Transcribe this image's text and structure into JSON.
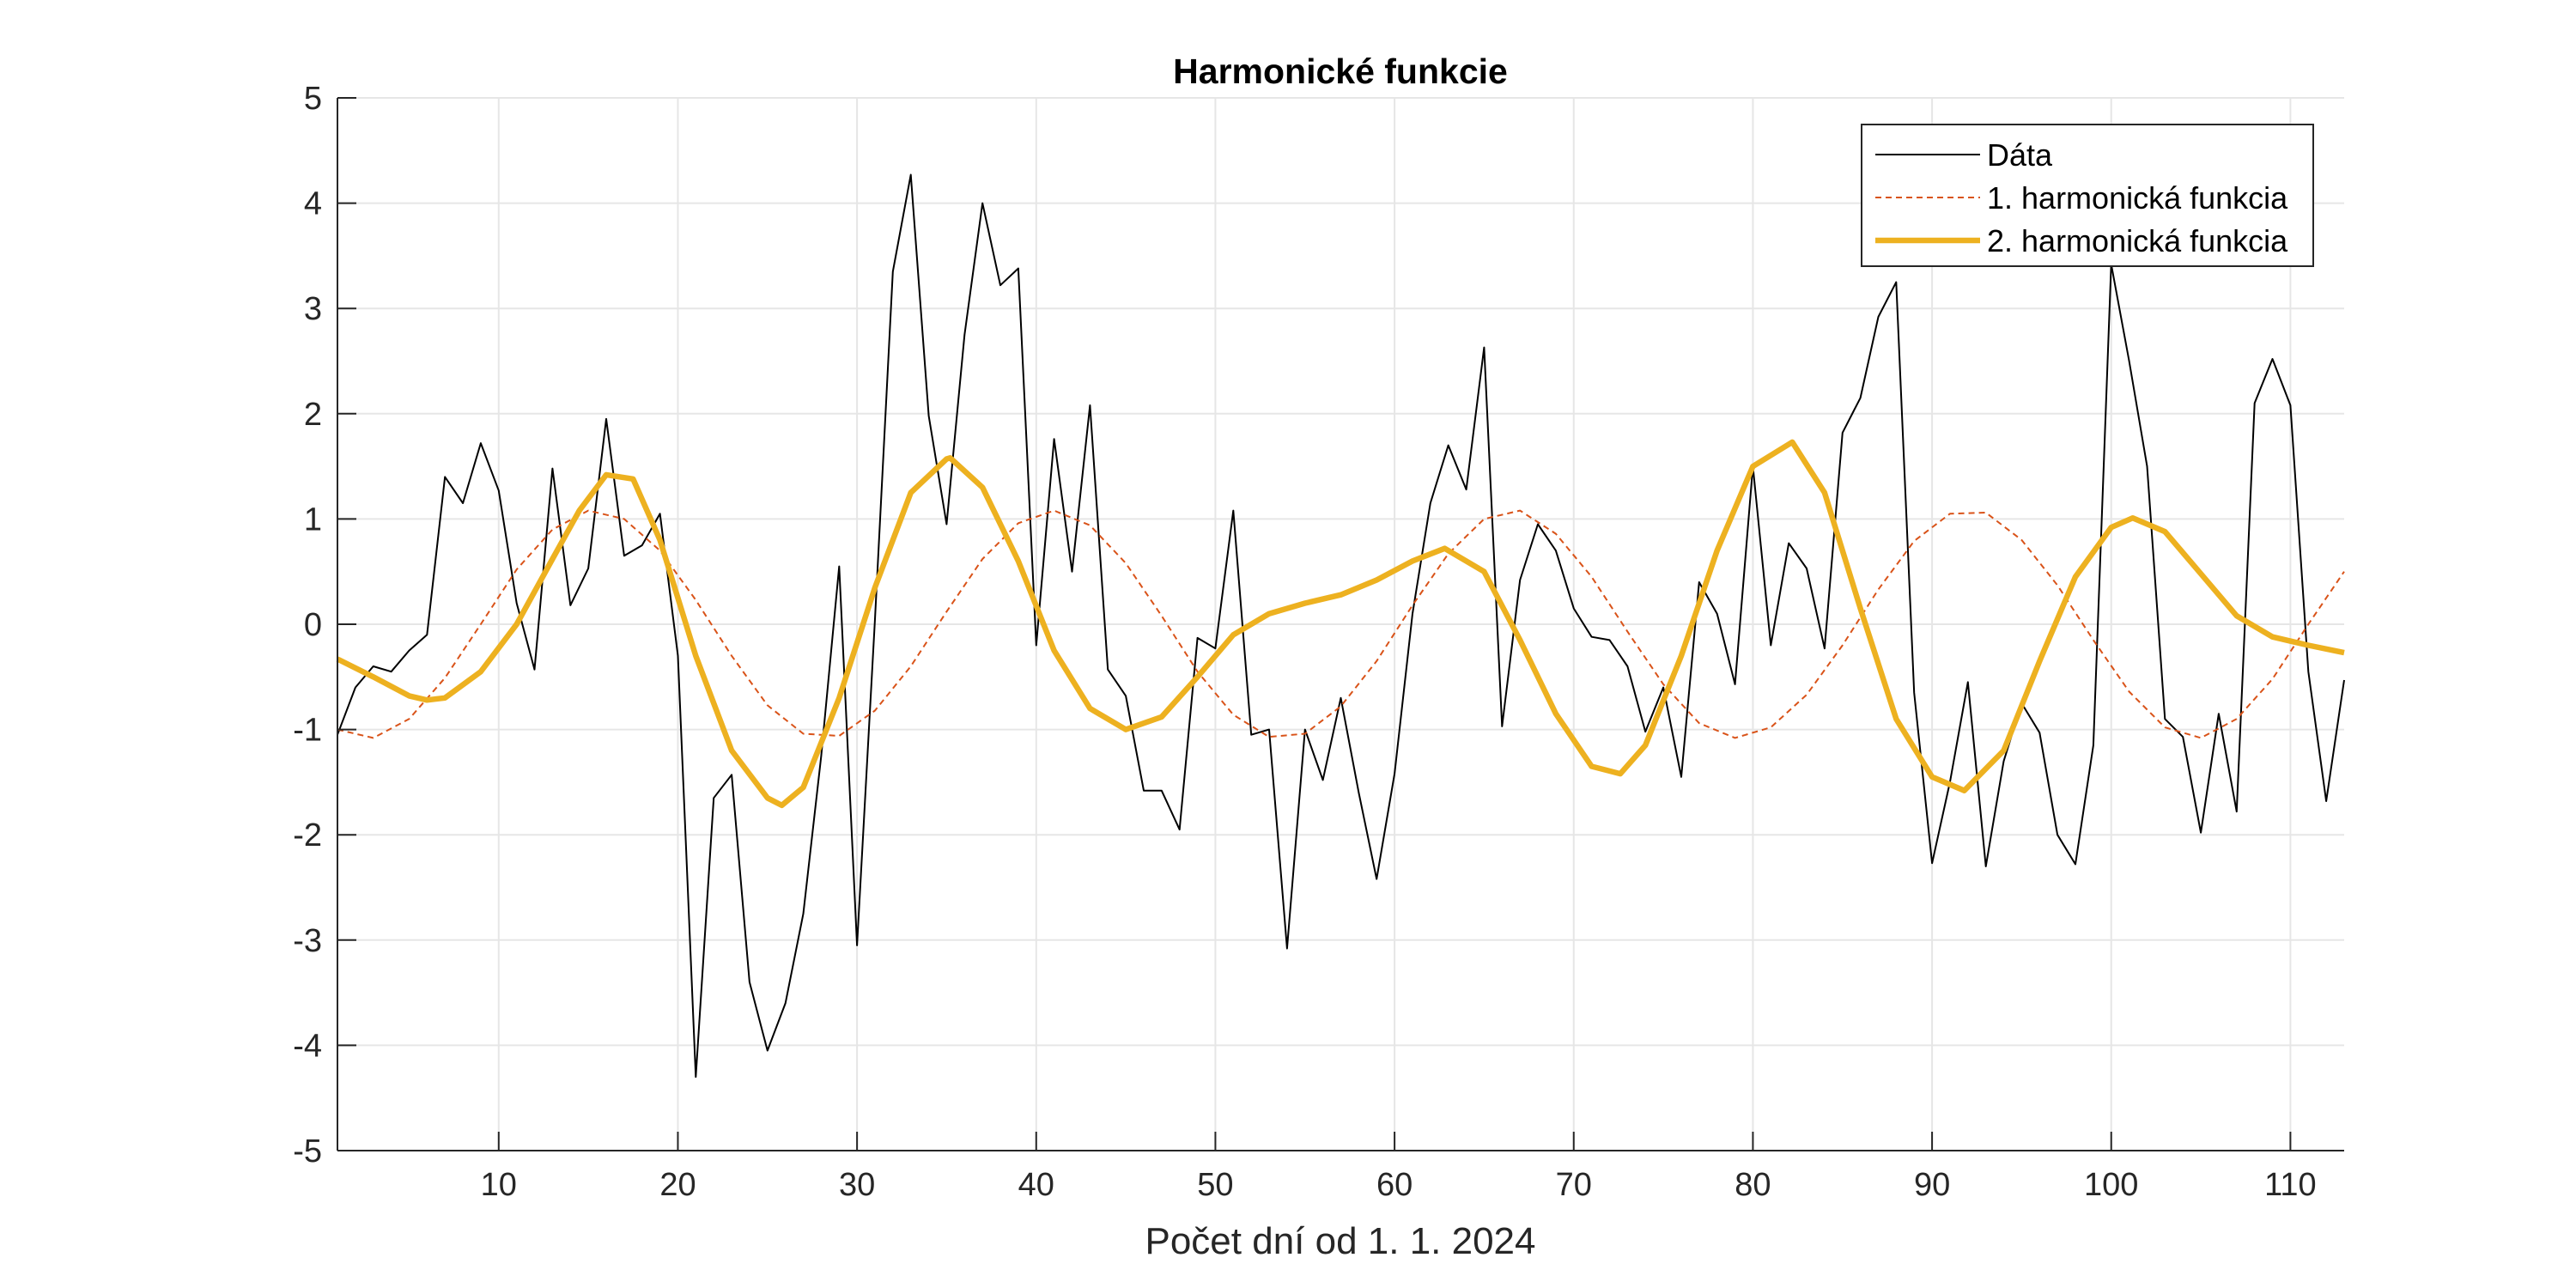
{
  "colors": {
    "data": "#000000",
    "harm1": "#D95319",
    "harm2": "#EDB120",
    "grid": "#e6e6e6",
    "axis": "#262626"
  },
  "chart_data": {
    "type": "line",
    "title": "Harmonické funkcie",
    "xlabel": "Počet dní od 1. 1. 2024",
    "ylabel": "",
    "xlim": [
      1,
      113
    ],
    "ylim": [
      -5,
      5
    ],
    "xticks": [
      10,
      20,
      30,
      40,
      50,
      60,
      70,
      80,
      90,
      100,
      110
    ],
    "yticks": [
      -5,
      -4,
      -3,
      -2,
      -1,
      0,
      1,
      2,
      3,
      4,
      5
    ],
    "grid": true,
    "legend_position": "top-right",
    "series": [
      {
        "name": "Dáta",
        "style": "solid-thin",
        "x": [
          1,
          2,
          3,
          4,
          5,
          6,
          7,
          8,
          9,
          10,
          11,
          12,
          13,
          14,
          15,
          16,
          17,
          18,
          19,
          20,
          21,
          22,
          23,
          24,
          25,
          26,
          27,
          28,
          29,
          30,
          31,
          32,
          33,
          34,
          35,
          36,
          37,
          38,
          39,
          40,
          41,
          42,
          43,
          44,
          45,
          46,
          47,
          48,
          49,
          50,
          51,
          52,
          53,
          54,
          55,
          56,
          57,
          58,
          59,
          60,
          61,
          62,
          63,
          64,
          65,
          66,
          67,
          68,
          69,
          70,
          71,
          72,
          73,
          74,
          75,
          76,
          77,
          78,
          79,
          80,
          81,
          82,
          83,
          84,
          85,
          86,
          87,
          88,
          89,
          90,
          91,
          92,
          93,
          94,
          95,
          96,
          97,
          98,
          99,
          100,
          101,
          102,
          103,
          104,
          105,
          106,
          107,
          108,
          109,
          110,
          111,
          112,
          113
        ],
        "y": [
          -1.05,
          -0.6,
          -0.4,
          -0.45,
          -0.25,
          -0.1,
          1.4,
          1.15,
          1.72,
          1.27,
          0.2,
          -0.43,
          1.48,
          0.18,
          0.53,
          1.95,
          0.65,
          0.75,
          1.05,
          -0.3,
          -4.3,
          -1.65,
          -1.43,
          -3.4,
          -4.05,
          -3.6,
          -2.75,
          -1.25,
          0.55,
          -3.05,
          0.05,
          3.35,
          4.27,
          1.98,
          0.95,
          2.75,
          4.0,
          3.22,
          3.38,
          -0.2,
          1.76,
          0.5,
          2.08,
          -0.43,
          -0.68,
          -1.58,
          -1.58,
          -1.95,
          -0.13,
          -0.23,
          1.08,
          -1.05,
          -1.0,
          -3.08,
          -1.0,
          -1.48,
          -0.7,
          -1.6,
          -2.42,
          -1.42,
          0.1,
          1.15,
          1.7,
          1.28,
          2.63,
          -0.97,
          0.42,
          0.95,
          0.7,
          0.15,
          -0.12,
          -0.15,
          -0.4,
          -1.02,
          -0.6,
          -1.45,
          0.4,
          0.1,
          -0.57,
          1.5,
          -0.2,
          0.77,
          0.53,
          -0.23,
          1.82,
          2.15,
          2.92,
          3.25,
          -0.65,
          -2.27,
          -1.5,
          -0.55,
          -2.3,
          -1.3,
          -0.75,
          -1.03,
          -2.0,
          -2.28,
          -1.15,
          3.42,
          2.5,
          1.5,
          -0.9,
          -1.07,
          -1.98,
          -0.85,
          -1.78,
          2.1,
          2.52,
          2.08,
          -0.45,
          -1.68,
          -0.53
        ]
      },
      {
        "name": "1. harmonická funkcia",
        "style": "dotted-thin",
        "x": [
          1,
          3,
          5,
          7,
          9,
          11,
          13,
          15,
          17,
          19,
          21,
          23,
          25,
          27,
          29,
          31,
          33,
          35,
          37,
          39,
          41,
          43,
          45,
          47,
          49,
          51,
          53,
          55,
          57,
          59,
          61,
          63,
          65,
          67,
          69,
          71,
          73,
          75,
          77,
          79,
          81,
          83,
          85,
          87,
          89,
          91,
          93,
          95,
          97,
          99,
          101,
          103,
          105,
          107,
          109,
          111,
          113
        ],
        "y": [
          -1.0,
          -1.08,
          -0.9,
          -0.51,
          0.0,
          0.52,
          0.9,
          1.08,
          1.0,
          0.7,
          0.23,
          -0.3,
          -0.77,
          -1.04,
          -1.06,
          -0.82,
          -0.4,
          0.12,
          0.62,
          0.96,
          1.08,
          0.94,
          0.58,
          0.08,
          -0.45,
          -0.86,
          -1.07,
          -1.04,
          -0.78,
          -0.35,
          0.18,
          0.67,
          1.0,
          1.08,
          0.86,
          0.45,
          -0.07,
          -0.57,
          -0.94,
          -1.08,
          -0.98,
          -0.67,
          -0.2,
          0.33,
          0.79,
          1.05,
          1.06,
          0.8,
          0.37,
          -0.15,
          -0.64,
          -0.98,
          -1.08,
          -0.9,
          -0.52,
          0.0,
          0.5
        ]
      },
      {
        "name": "2. harmonická funkcia",
        "style": "solid-thick",
        "x": [
          1,
          3,
          5,
          6,
          7,
          9,
          11,
          13,
          14.5,
          16,
          17.5,
          19,
          21,
          23,
          25,
          25.8,
          27,
          29,
          31,
          33,
          35,
          35.2,
          37,
          39,
          41,
          43,
          45,
          47,
          49,
          51,
          53,
          55,
          57,
          59,
          61,
          62.8,
          65,
          67,
          69,
          71,
          72.6,
          74,
          76,
          78,
          80,
          82.2,
          84,
          86,
          88,
          90,
          91.8,
          94,
          96,
          98,
          100,
          101.2,
          103,
          105,
          107,
          109,
          111,
          113
        ],
        "y": [
          -0.33,
          -0.5,
          -0.68,
          -0.72,
          -0.7,
          -0.45,
          0.0,
          0.62,
          1.08,
          1.42,
          1.38,
          0.8,
          -0.3,
          -1.2,
          -1.65,
          -1.72,
          -1.55,
          -0.7,
          0.35,
          1.25,
          1.57,
          1.58,
          1.3,
          0.6,
          -0.25,
          -0.8,
          -1.0,
          -0.88,
          -0.5,
          -0.1,
          0.1,
          0.2,
          0.28,
          0.42,
          0.6,
          0.72,
          0.5,
          -0.15,
          -0.85,
          -1.35,
          -1.42,
          -1.15,
          -0.3,
          0.7,
          1.5,
          1.73,
          1.25,
          0.15,
          -0.9,
          -1.45,
          -1.58,
          -1.2,
          -0.35,
          0.45,
          0.92,
          1.01,
          0.88,
          0.48,
          0.08,
          -0.12,
          -0.2,
          -0.27
        ]
      }
    ]
  }
}
